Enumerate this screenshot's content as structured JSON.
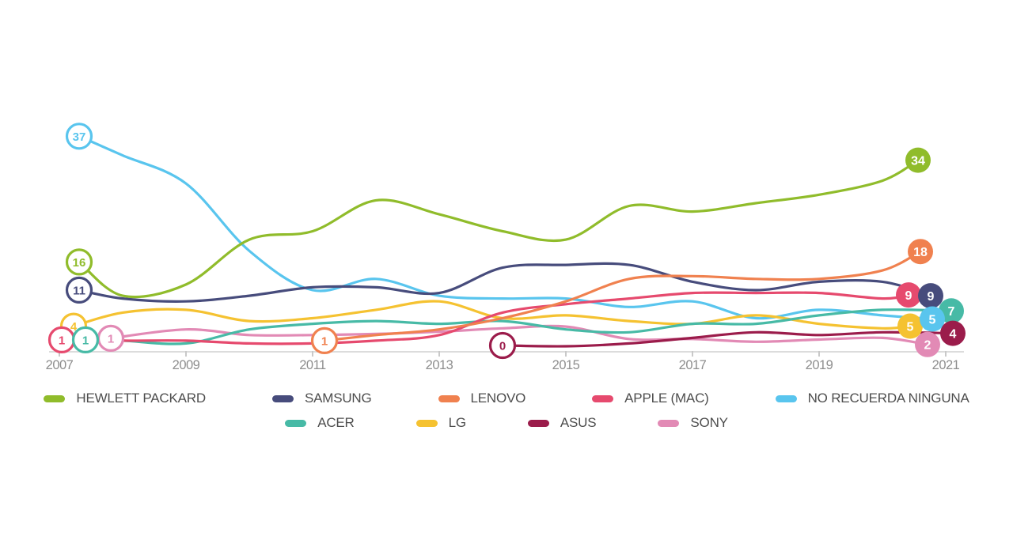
{
  "chart_data": {
    "type": "line",
    "title": "",
    "x": [
      2007,
      2008,
      2009,
      2010,
      2011,
      2012,
      2013,
      2014,
      2015,
      2016,
      2017,
      2018,
      2019,
      2020,
      2021
    ],
    "xtick_labels": [
      "2007",
      "2009",
      "2011",
      "2013",
      "2015",
      "2017",
      "2019",
      "2021"
    ],
    "ylim": [
      0,
      40
    ],
    "grid": false,
    "legend_position": "bottom",
    "axis_color": "#dcdcdc",
    "tick_color": "#c9c9c9",
    "tick_label_color": "#8e8e8e",
    "series": [
      {
        "id": "hp",
        "name": "HEWLETT PACKARD",
        "color": "#90BC2B",
        "start_label": "16",
        "end_label": "34",
        "values": [
          16,
          9,
          11,
          19,
          20.5,
          26,
          23.5,
          20.5,
          19,
          25,
          24,
          25.5,
          27,
          29.5,
          34
        ]
      },
      {
        "id": "samsung",
        "name": "SAMSUNG",
        "color": "#474C7C",
        "start_label": "11",
        "end_label": "9",
        "values": [
          11,
          8.5,
          8,
          9,
          10.5,
          10.5,
          9.5,
          14,
          14.5,
          14.5,
          11.5,
          10,
          11.5,
          11.5,
          9
        ]
      },
      {
        "id": "lenovo",
        "name": "LENOVO",
        "color": "#F0814F",
        "start_label": "1",
        "end_label": "18",
        "values": [
          null,
          null,
          null,
          null,
          1,
          2,
          3,
          5,
          8,
          12,
          12.5,
          12,
          12,
          13.5,
          18
        ]
      },
      {
        "id": "apple",
        "name": "APPLE (MAC)",
        "color": "#E64A6E",
        "start_label": "1",
        "end_label": "9",
        "values": [
          1,
          1,
          1,
          0.5,
          0.5,
          1,
          2,
          6,
          7.5,
          8.5,
          9.5,
          9.5,
          9.5,
          8.5,
          9
        ]
      },
      {
        "id": "noname",
        "name": "NO RECUERDA NINGUNA",
        "color": "#59C5EE",
        "start_label": "37",
        "end_label": "5",
        "values": [
          37,
          34,
          29,
          17,
          10,
          12,
          9,
          8.5,
          8.5,
          7,
          8,
          5,
          6.5,
          5.5,
          5
        ]
      },
      {
        "id": "acer",
        "name": "ACER",
        "color": "#47BAA6",
        "start_label": "1",
        "end_label": "7",
        "values": [
          1,
          1,
          0.5,
          3,
          4,
          4.5,
          4,
          4.5,
          3,
          2.5,
          4,
          4,
          5.5,
          6.5,
          7
        ]
      },
      {
        "id": "lg",
        "name": "LG",
        "color": "#F5C231",
        "start_label": "4",
        "end_label": "5",
        "values": [
          4,
          6,
          6.5,
          4.5,
          5,
          6.5,
          8,
          5,
          5.5,
          4.5,
          4,
          5.5,
          4,
          3.2,
          5
        ]
      },
      {
        "id": "asus",
        "name": "ASUS",
        "color": "#9B1C4B",
        "start_label": "0",
        "end_label": "4",
        "values": [
          null,
          null,
          null,
          null,
          null,
          null,
          null,
          0,
          0,
          0.5,
          1.5,
          2.5,
          2,
          2.5,
          4
        ]
      },
      {
        "id": "sony",
        "name": "SONY",
        "color": "#E28AB5",
        "start_label": "1",
        "end_label": "2",
        "values": [
          null,
          1,
          3,
          2,
          2,
          2.2,
          2.6,
          3.2,
          3.5,
          1.3,
          1.3,
          0.8,
          1.2,
          1.5,
          2
        ]
      }
    ]
  },
  "legend": {
    "text_color": "#4d4d4d",
    "rows": [
      {
        "items": [
          {
            "id": "hp",
            "label": "HEWLETT PACKARD"
          },
          {
            "id": "samsung",
            "label": "SAMSUNG"
          },
          {
            "id": "lenovo",
            "label": "LENOVO"
          },
          {
            "id": "apple",
            "label": "APPLE (MAC)"
          },
          {
            "id": "noname",
            "label": "NO RECUERDA NINGUNA"
          }
        ]
      },
      {
        "items": [
          {
            "id": "acer",
            "label": "ACER"
          },
          {
            "id": "lg",
            "label": "LG"
          },
          {
            "id": "asus",
            "label": "ASUS"
          },
          {
            "id": "sony",
            "label": "SONY"
          }
        ]
      }
    ]
  }
}
